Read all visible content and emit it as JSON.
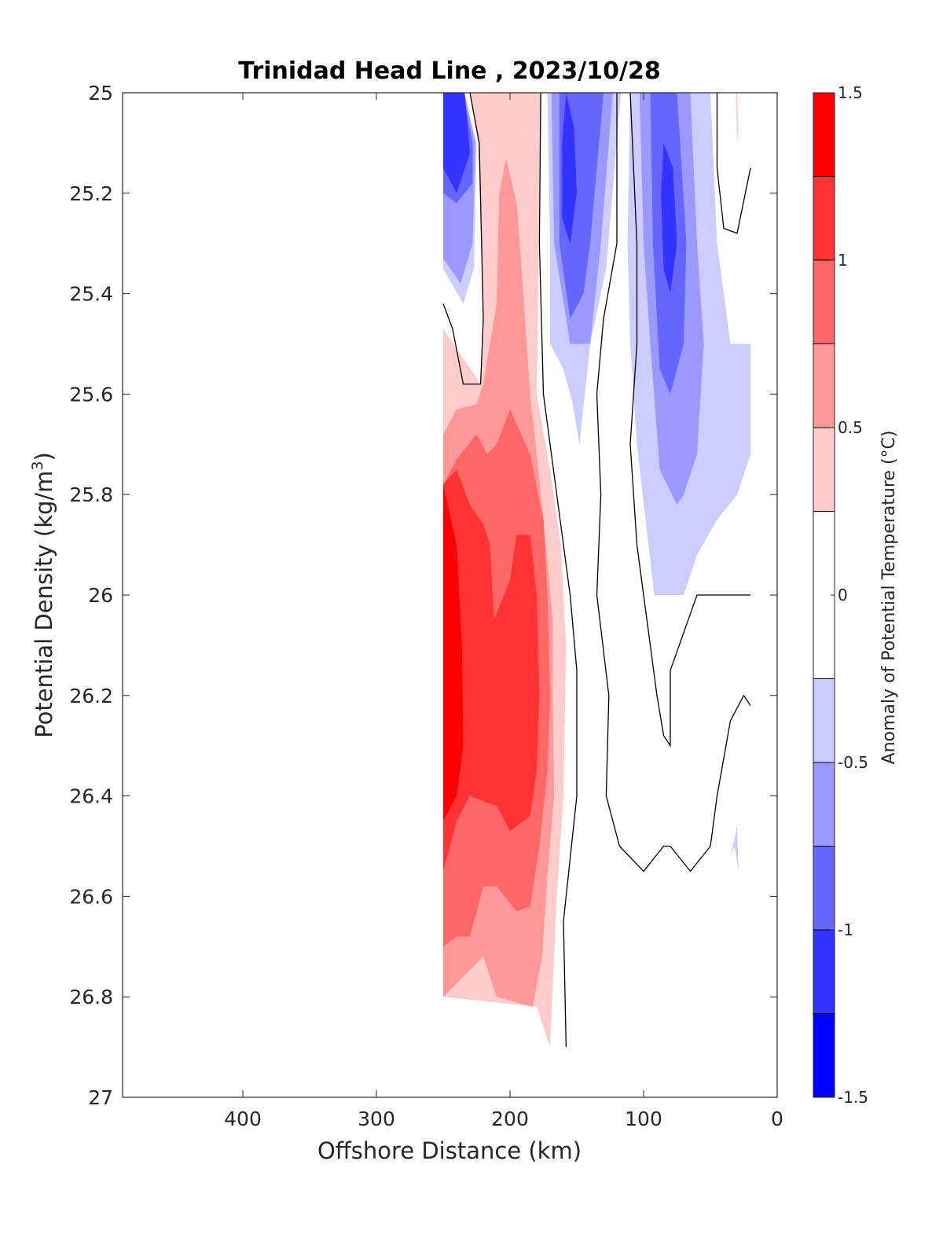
{
  "chart_data": {
    "type": "heatmap",
    "subtype": "filled-contour",
    "title": "Trinidad Head Line , 2023/10/28",
    "xlabel": "Offshore Distance (km)",
    "ylabel_main": "Potential Density (kg/m",
    "ylabel_sup": "3",
    "ylabel_end": ")",
    "x_axis": {
      "range": [
        490,
        0
      ],
      "reversed": true,
      "ticks": [
        400,
        300,
        200,
        100,
        0
      ]
    },
    "y_axis": {
      "range": [
        25,
        27
      ],
      "reversed": true,
      "ticks": [
        "25",
        "25.2",
        "25.4",
        "25.6",
        "25.8",
        "26",
        "26.2",
        "26.4",
        "26.6",
        "26.8",
        "27"
      ]
    },
    "colorbar": {
      "label": "Anomaly of Potential Temperature (°C)",
      "ticks": [
        "1.5",
        "1",
        "0.5",
        "0",
        "-0.5",
        "-1",
        "-1.5"
      ],
      "levels": [
        1.5,
        1.25,
        1.0,
        0.75,
        0.5,
        0.25,
        -0.25,
        -0.5,
        -0.75,
        -1.0,
        -1.25,
        -1.5
      ],
      "colors": [
        "#ff0000",
        "#ff3333",
        "#ff6666",
        "#ff9999",
        "#ffcccc",
        "#ffffff",
        "#ccccff",
        "#9999ff",
        "#6666ff",
        "#3333ff",
        "#0000ff"
      ]
    },
    "regions": [
      {
        "level": 0.25,
        "color": "#ffcccc",
        "points": [
          [
            250,
            25.47
          ],
          [
            222,
            25.58
          ],
          [
            220,
            25.42
          ],
          [
            224,
            25.1
          ],
          [
            230,
            25.0
          ],
          [
            177,
            25.0
          ],
          [
            178,
            25.2
          ],
          [
            180,
            25.6
          ],
          [
            170,
            25.75
          ],
          [
            162,
            25.9
          ],
          [
            158,
            26.1
          ],
          [
            160,
            26.4
          ],
          [
            165,
            26.6
          ],
          [
            170,
            26.9
          ],
          [
            180,
            26.82
          ],
          [
            250,
            26.8
          ]
        ]
      },
      {
        "level": 0.5,
        "color": "#ff9999",
        "points": [
          [
            250,
            25.68
          ],
          [
            240,
            25.63
          ],
          [
            225,
            25.62
          ],
          [
            220,
            25.58
          ],
          [
            210,
            25.42
          ],
          [
            208,
            25.2
          ],
          [
            203,
            25.13
          ],
          [
            195,
            25.22
          ],
          [
            190,
            25.4
          ],
          [
            185,
            25.6
          ],
          [
            180,
            25.72
          ],
          [
            175,
            25.85
          ],
          [
            168,
            26.05
          ],
          [
            168,
            26.2
          ],
          [
            167,
            26.4
          ],
          [
            172,
            26.56
          ],
          [
            176,
            26.72
          ],
          [
            183,
            26.82
          ],
          [
            210,
            26.8
          ],
          [
            220,
            26.72
          ],
          [
            250,
            26.8
          ]
        ]
      },
      {
        "level": 0.75,
        "color": "#ff6666",
        "points": [
          [
            250,
            25.78
          ],
          [
            240,
            25.73
          ],
          [
            225,
            25.68
          ],
          [
            217,
            25.72
          ],
          [
            210,
            25.7
          ],
          [
            200,
            25.63
          ],
          [
            185,
            25.72
          ],
          [
            175,
            25.85
          ],
          [
            172,
            26.0
          ],
          [
            170,
            26.2
          ],
          [
            172,
            26.35
          ],
          [
            178,
            26.5
          ],
          [
            185,
            26.62
          ],
          [
            195,
            26.63
          ],
          [
            210,
            26.58
          ],
          [
            220,
            26.58
          ],
          [
            230,
            26.68
          ],
          [
            240,
            26.68
          ],
          [
            250,
            26.7
          ]
        ]
      },
      {
        "level": 1.0,
        "color": "#ff3333",
        "points": [
          [
            250,
            25.78
          ],
          [
            240,
            25.75
          ],
          [
            230,
            25.82
          ],
          [
            220,
            25.86
          ],
          [
            215,
            25.9
          ],
          [
            212,
            26.05
          ],
          [
            200,
            25.97
          ],
          [
            195,
            25.88
          ],
          [
            185,
            25.88
          ],
          [
            180,
            26.0
          ],
          [
            178,
            26.2
          ],
          [
            180,
            26.35
          ],
          [
            185,
            26.44
          ],
          [
            200,
            26.47
          ],
          [
            210,
            26.42
          ],
          [
            230,
            26.4
          ],
          [
            240,
            26.45
          ],
          [
            250,
            26.55
          ]
        ]
      },
      {
        "level": 1.25,
        "color": "#ff0000",
        "points": [
          [
            250,
            25.78
          ],
          [
            240,
            25.9
          ],
          [
            236,
            26.1
          ],
          [
            235,
            26.3
          ],
          [
            240,
            26.4
          ],
          [
            250,
            26.45
          ]
        ]
      },
      {
        "level": -0.25,
        "color": "#ccccff",
        "points": [
          [
            250,
            25.35
          ],
          [
            235,
            25.42
          ],
          [
            227,
            25.35
          ],
          [
            225,
            25.1
          ],
          [
            235,
            25.0
          ],
          [
            250,
            25.0
          ]
        ]
      },
      {
        "level": -0.5,
        "color": "#9999ff",
        "points": [
          [
            250,
            25.33
          ],
          [
            237,
            25.38
          ],
          [
            228,
            25.3
          ],
          [
            226,
            25.1
          ],
          [
            234,
            25.0
          ],
          [
            250,
            25.0
          ]
        ]
      },
      {
        "level": -0.75,
        "color": "#6666ff",
        "points": [
          [
            250,
            25.2
          ],
          [
            240,
            25.22
          ],
          [
            228,
            25.18
          ],
          [
            228,
            25.1
          ],
          [
            235,
            25.0
          ],
          [
            250,
            25.0
          ]
        ]
      },
      {
        "level": -1.0,
        "color": "#3333ff",
        "points": [
          [
            250,
            25.15
          ],
          [
            240,
            25.2
          ],
          [
            230,
            25.12
          ],
          [
            234,
            25.0
          ],
          [
            250,
            25.0
          ]
        ]
      },
      {
        "level": -0.25,
        "color": "#ccccff",
        "points": [
          [
            172,
            25.0
          ],
          [
            170,
            25.3
          ],
          [
            170,
            25.5
          ],
          [
            160,
            25.55
          ],
          [
            153,
            25.62
          ],
          [
            148,
            25.7
          ],
          [
            140,
            25.5
          ],
          [
            128,
            25.35
          ],
          [
            117,
            25.0
          ]
        ]
      },
      {
        "level": -0.5,
        "color": "#9999ff",
        "points": [
          [
            169,
            25.0
          ],
          [
            167,
            25.3
          ],
          [
            155,
            25.5
          ],
          [
            140,
            25.5
          ],
          [
            132,
            25.3
          ],
          [
            123,
            25.0
          ]
        ]
      },
      {
        "level": -0.75,
        "color": "#6666ff",
        "points": [
          [
            163,
            25.0
          ],
          [
            163,
            25.3
          ],
          [
            155,
            25.45
          ],
          [
            145,
            25.4
          ],
          [
            140,
            25.3
          ],
          [
            130,
            25.0
          ]
        ]
      },
      {
        "level": -1.0,
        "color": "#3333ff",
        "points": [
          [
            161,
            25.1
          ],
          [
            161,
            25.25
          ],
          [
            155,
            25.3
          ],
          [
            150,
            25.2
          ],
          [
            152,
            25.07
          ],
          [
            158,
            25.0
          ]
        ]
      },
      {
        "level": -0.25,
        "color": "#ccccff",
        "points": [
          [
            110,
            25.0
          ],
          [
            112,
            25.3
          ],
          [
            110,
            25.5
          ],
          [
            105,
            25.7
          ],
          [
            92,
            26.0
          ],
          [
            70,
            26.0
          ],
          [
            60,
            25.92
          ],
          [
            45,
            25.85
          ],
          [
            30,
            25.8
          ],
          [
            20,
            25.72
          ],
          [
            20,
            25.5
          ],
          [
            35,
            25.5
          ],
          [
            45,
            25.3
          ],
          [
            50,
            25.0
          ]
        ]
      },
      {
        "level": -0.5,
        "color": "#9999ff",
        "points": [
          [
            103,
            25.0
          ],
          [
            100,
            25.3
          ],
          [
            95,
            25.5
          ],
          [
            88,
            25.75
          ],
          [
            75,
            25.82
          ],
          [
            70,
            25.8
          ],
          [
            60,
            25.72
          ],
          [
            55,
            25.5
          ],
          [
            60,
            25.3
          ],
          [
            65,
            25.0
          ]
        ]
      },
      {
        "level": -0.75,
        "color": "#6666ff",
        "points": [
          [
            95,
            25.0
          ],
          [
            93,
            25.3
          ],
          [
            88,
            25.55
          ],
          [
            80,
            25.6
          ],
          [
            70,
            25.5
          ],
          [
            68,
            25.3
          ],
          [
            75,
            25.0
          ]
        ]
      },
      {
        "level": -1.0,
        "color": "#3333ff",
        "points": [
          [
            87,
            25.2
          ],
          [
            85,
            25.35
          ],
          [
            80,
            25.4
          ],
          [
            75,
            25.3
          ],
          [
            78,
            25.15
          ],
          [
            85,
            25.1
          ]
        ]
      },
      {
        "level": 0.25,
        "color": "#ffcccc",
        "points": [
          [
            31,
            25.0
          ],
          [
            30,
            25.1
          ],
          [
            29,
            25.07
          ],
          [
            30,
            25.0
          ]
        ]
      },
      {
        "level": -0.25,
        "color": "#ccccff",
        "points": [
          [
            30,
            26.46
          ],
          [
            29,
            26.55
          ],
          [
            32,
            26.5
          ],
          [
            35,
            26.52
          ]
        ]
      }
    ],
    "zero_contours": [
      {
        "points": [
          [
            250,
            25.42
          ],
          [
            243,
            25.47
          ],
          [
            235,
            25.58
          ],
          [
            222,
            25.58
          ],
          [
            220,
            25.45
          ],
          [
            223,
            25.1
          ],
          [
            230,
            25.0
          ]
        ]
      },
      {
        "points": [
          [
            177,
            25.0
          ],
          [
            178,
            25.3
          ],
          [
            175,
            25.6
          ],
          [
            165,
            25.8
          ],
          [
            155,
            26.0
          ],
          [
            150,
            26.15
          ],
          [
            150,
            26.4
          ],
          [
            160,
            26.65
          ],
          [
            158,
            26.9
          ]
        ]
      },
      {
        "points": [
          [
            120,
            25.0
          ],
          [
            120,
            25.3
          ],
          [
            130,
            25.45
          ],
          [
            135,
            25.6
          ],
          [
            132,
            25.8
          ],
          [
            135,
            26.0
          ],
          [
            126,
            26.2
          ],
          [
            128,
            26.4
          ],
          [
            118,
            26.5
          ],
          [
            100,
            26.55
          ],
          [
            85,
            26.5
          ],
          [
            80,
            26.5
          ],
          [
            65,
            26.55
          ],
          [
            50,
            26.5
          ],
          [
            45,
            26.4
          ],
          [
            35,
            26.25
          ],
          [
            25,
            26.2
          ],
          [
            20,
            26.22
          ]
        ]
      },
      {
        "points": [
          [
            110,
            25.0
          ],
          [
            105,
            25.3
          ],
          [
            105,
            25.5
          ],
          [
            110,
            25.7
          ],
          [
            105,
            25.9
          ],
          [
            100,
            26.0
          ],
          [
            90,
            26.2
          ],
          [
            85,
            26.28
          ],
          [
            80,
            26.3
          ],
          [
            80,
            26.15
          ],
          [
            60,
            26.0
          ],
          [
            45,
            26.0
          ],
          [
            30,
            26.0
          ],
          [
            20,
            26.0
          ]
        ]
      },
      {
        "points": [
          [
            45,
            25.0
          ],
          [
            45,
            25.15
          ],
          [
            40,
            25.27
          ],
          [
            30,
            25.28
          ],
          [
            20,
            25.15
          ]
        ]
      }
    ]
  }
}
